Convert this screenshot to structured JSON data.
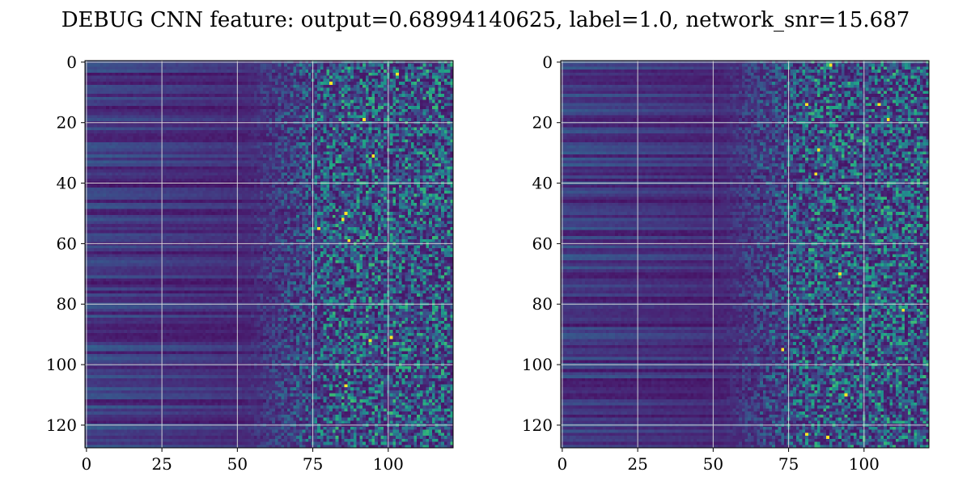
{
  "title": "DEBUG CNN feature: output=0.68994140625, label=1.0, network_snr=15.687",
  "colors": {
    "colormap": "viridis",
    "viridis_low": "#440154",
    "viridis_mid": "#21918c",
    "viridis_high": "#fde725",
    "grid": "#d9d9d9",
    "background": "#ffffff"
  },
  "chart_data": [
    {
      "type": "heatmap",
      "colormap": "viridis",
      "rows": 128,
      "cols": 122,
      "xlim": [
        -0.5,
        121.5
      ],
      "ylim": [
        127.5,
        -0.5
      ],
      "x_ticks": [
        0,
        25,
        50,
        75,
        100
      ],
      "x_tick_labels": [
        "0",
        "25",
        "50",
        "75",
        "100"
      ],
      "y_ticks": [
        0,
        20,
        40,
        60,
        80,
        100,
        120
      ],
      "y_tick_labels": [
        "0",
        "20",
        "40",
        "60",
        "80",
        "100",
        "120"
      ],
      "grid": true,
      "value_range": [
        0,
        1
      ],
      "pattern": "low, horizontally banded values for columns 0–50; increasingly noisy, higher values with scattered yellow peaks for columns 60–121",
      "notable_peaks": [
        {
          "x": 87,
          "y": 59
        },
        {
          "x": 77,
          "y": 55
        },
        {
          "x": 85,
          "y": 52
        },
        {
          "x": 86,
          "y": 50
        },
        {
          "x": 92,
          "y": 19
        },
        {
          "x": 103,
          "y": 4
        },
        {
          "x": 101,
          "y": 91
        },
        {
          "x": 94,
          "y": 92
        },
        {
          "x": 86,
          "y": 107
        },
        {
          "x": 81,
          "y": 7
        },
        {
          "x": 95,
          "y": 31
        }
      ]
    },
    {
      "type": "heatmap",
      "colormap": "viridis",
      "rows": 128,
      "cols": 122,
      "xlim": [
        -0.5,
        121.5
      ],
      "ylim": [
        127.5,
        -0.5
      ],
      "x_ticks": [
        0,
        25,
        50,
        75,
        100
      ],
      "x_tick_labels": [
        "0",
        "25",
        "50",
        "75",
        "100"
      ],
      "y_ticks": [
        0,
        20,
        40,
        60,
        80,
        100,
        120
      ],
      "y_tick_labels": [
        "0",
        "20",
        "40",
        "60",
        "80",
        "100",
        "120"
      ],
      "grid": true,
      "value_range": [
        0,
        1
      ],
      "pattern": "low, horizontally banded values for columns 0–50; increasingly noisy, higher values with scattered yellow peaks for columns 60–121",
      "notable_peaks": [
        {
          "x": 88,
          "y": 124
        },
        {
          "x": 81,
          "y": 14
        },
        {
          "x": 108,
          "y": 19
        },
        {
          "x": 92,
          "y": 70
        },
        {
          "x": 94,
          "y": 110
        },
        {
          "x": 81,
          "y": 123
        },
        {
          "x": 84,
          "y": 37
        },
        {
          "x": 113,
          "y": 82
        },
        {
          "x": 85,
          "y": 29
        },
        {
          "x": 105,
          "y": 14
        },
        {
          "x": 89,
          "y": 1
        },
        {
          "x": 73,
          "y": 95
        }
      ]
    }
  ]
}
